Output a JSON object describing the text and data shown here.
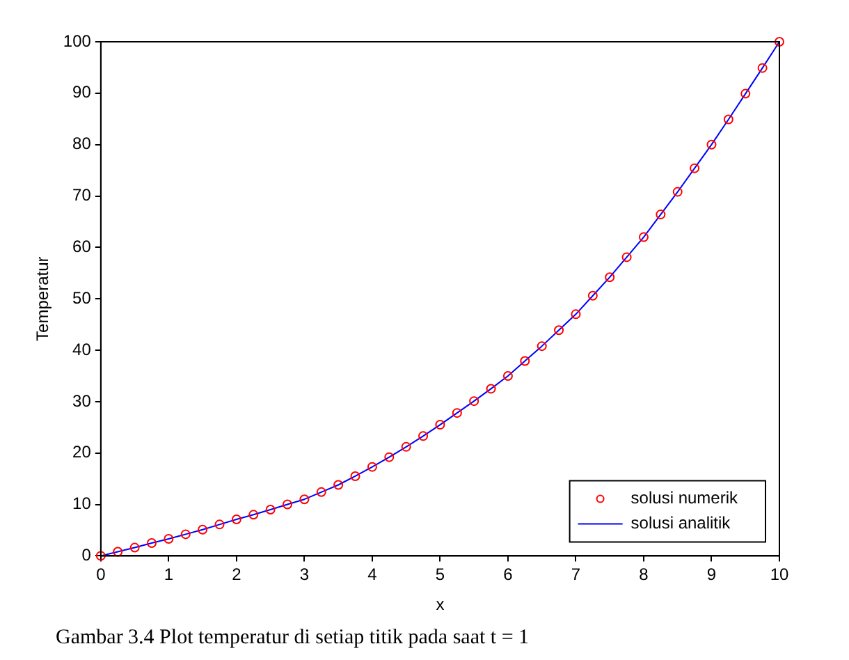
{
  "chart_data": {
    "type": "line",
    "xlabel": "x",
    "ylabel": "Temperatur",
    "x": [
      0,
      0.25,
      0.5,
      0.75,
      1,
      1.25,
      1.5,
      1.75,
      2,
      2.25,
      2.5,
      2.75,
      3,
      3.25,
      3.5,
      3.75,
      4,
      4.25,
      4.5,
      4.75,
      5,
      5.25,
      5.5,
      5.75,
      6,
      6.25,
      6.5,
      6.75,
      7,
      7.25,
      7.5,
      7.75,
      8,
      8.25,
      8.5,
      8.75,
      9,
      9.25,
      9.5,
      9.75,
      10
    ],
    "series": [
      {
        "name": "solusi numerik",
        "type": "scatter",
        "marker": "circle",
        "color": "#ff0000",
        "values": [
          0,
          0.8,
          1.6,
          2.5,
          3.3,
          4.2,
          5.1,
          6.1,
          7.1,
          8.0,
          9.0,
          10.0,
          11.0,
          12.4,
          13.8,
          15.5,
          17.3,
          19.2,
          21.2,
          23.3,
          25.5,
          27.8,
          30.1,
          32.5,
          35,
          37.9,
          40.8,
          43.9,
          47,
          50.6,
          54.2,
          58.1,
          62,
          66.4,
          70.8,
          75.4,
          80,
          84.9,
          89.9,
          94.9,
          100
        ]
      },
      {
        "name": "solusi analitik",
        "marker": "none",
        "line_style": "solid",
        "color": "#0000ff",
        "values": [
          0,
          0.8,
          1.6,
          2.5,
          3.3,
          4.2,
          5.1,
          6.1,
          7.1,
          8.0,
          9.0,
          10.0,
          11.0,
          12.4,
          13.8,
          15.5,
          17.3,
          19.2,
          21.2,
          23.3,
          25.5,
          27.8,
          30.1,
          32.5,
          35,
          37.9,
          40.8,
          43.9,
          47,
          50.6,
          54.2,
          58.1,
          62,
          66.4,
          70.8,
          75.4,
          80,
          84.9,
          89.9,
          94.9,
          100
        ]
      }
    ],
    "xlim": [
      0,
      10
    ],
    "xticks": [
      0,
      1,
      2,
      3,
      4,
      5,
      6,
      7,
      8,
      9,
      10
    ],
    "ylim": [
      0,
      100
    ],
    "yticks": [
      0,
      10,
      20,
      30,
      40,
      50,
      60,
      70,
      80,
      90,
      100
    ],
    "grid": false,
    "legend": "bottom right",
    "annotations": [
      "Gambar 3.4 Plot temperatur di setiap titik pada saat t = 1"
    ]
  }
}
